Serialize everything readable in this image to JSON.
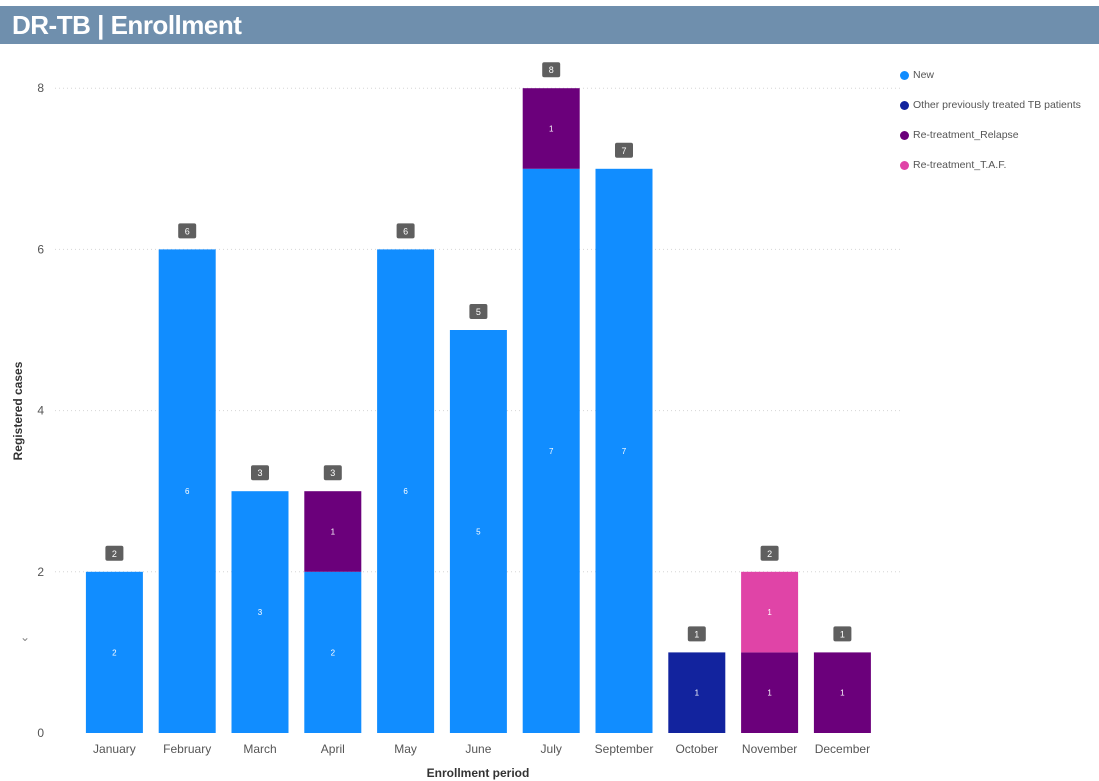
{
  "header": {
    "title": "DR-TB | Enrollment"
  },
  "legend": {
    "items": [
      {
        "label": "New",
        "color": "#118dff"
      },
      {
        "label": "Other previously treated TB patients",
        "color": "#12239e"
      },
      {
        "label": "Re-treatment_Relapse",
        "color": "#6b007b"
      },
      {
        "label": "Re-treatment_T.A.F.",
        "color": "#e044a7"
      }
    ]
  },
  "chart_data": {
    "type": "bar",
    "stacked": true,
    "title": "DR-TB | Enrollment",
    "xlabel": "Enrollment period",
    "ylabel": "Registered cases",
    "ylim": [
      0,
      8
    ],
    "yticks": [
      0,
      2,
      4,
      6,
      8
    ],
    "grid": true,
    "legend_position": "top-right",
    "categories": [
      "January",
      "February",
      "March",
      "April",
      "May",
      "June",
      "July",
      "September",
      "October",
      "November",
      "December"
    ],
    "series": [
      {
        "name": "New",
        "color": "#118dff",
        "values": [
          2,
          6,
          3,
          2,
          6,
          5,
          7,
          7,
          0,
          0,
          0
        ]
      },
      {
        "name": "Other previously treated TB patients",
        "color": "#12239e",
        "values": [
          0,
          0,
          0,
          0,
          0,
          0,
          0,
          0,
          1,
          0,
          0
        ]
      },
      {
        "name": "Re-treatment_Relapse",
        "color": "#6b007b",
        "values": [
          0,
          0,
          0,
          1,
          0,
          0,
          1,
          0,
          0,
          1,
          1
        ]
      },
      {
        "name": "Re-treatment_T.A.F.",
        "color": "#e044a7",
        "values": [
          0,
          0,
          0,
          0,
          0,
          0,
          0,
          0,
          0,
          1,
          0
        ]
      }
    ],
    "totals": [
      2,
      6,
      3,
      3,
      6,
      5,
      8,
      7,
      1,
      2,
      1
    ]
  }
}
